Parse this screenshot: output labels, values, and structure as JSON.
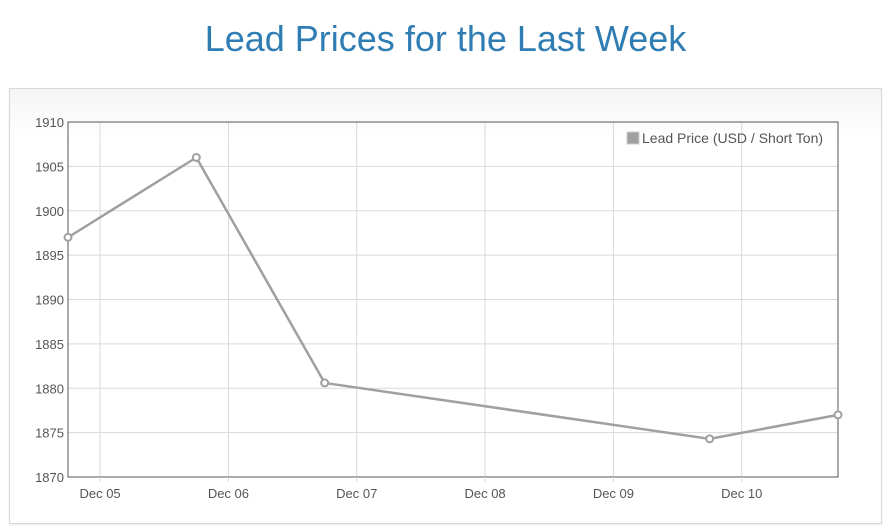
{
  "header": {
    "title": "Lead Prices for the Last Week"
  },
  "colors": {
    "title": "#2f7db3",
    "series": "#a0a0a0",
    "grid": "#d9d9d9",
    "axis": "#555555"
  },
  "chart_data": {
    "type": "line",
    "title": "Lead Prices for the Last Week",
    "xlabel": "",
    "ylabel": "",
    "grid": true,
    "legend_position": "top-right",
    "x_ticks": [
      "Dec 05",
      "Dec 06",
      "Dec 07",
      "Dec 08",
      "Dec 09",
      "Dec 10"
    ],
    "y_ticks": [
      1910,
      1905,
      1900,
      1895,
      1890,
      1885,
      1880,
      1875,
      1870
    ],
    "ylim": [
      1870,
      1910
    ],
    "xlim": [
      "Dec 04 18:00",
      "Dec 10 18:00"
    ],
    "series": [
      {
        "name": "Lead Price (USD / Short Ton)",
        "color": "#a0a0a0",
        "points": [
          {
            "x": "Dec 04 18:00",
            "y": 1897
          },
          {
            "x": "Dec 05 18:00",
            "y": 1906
          },
          {
            "x": "Dec 06 18:00",
            "y": 1880.6
          },
          {
            "x": "Dec 09 18:00",
            "y": 1874.3
          },
          {
            "x": "Dec 10 18:00",
            "y": 1877
          }
        ]
      }
    ]
  }
}
